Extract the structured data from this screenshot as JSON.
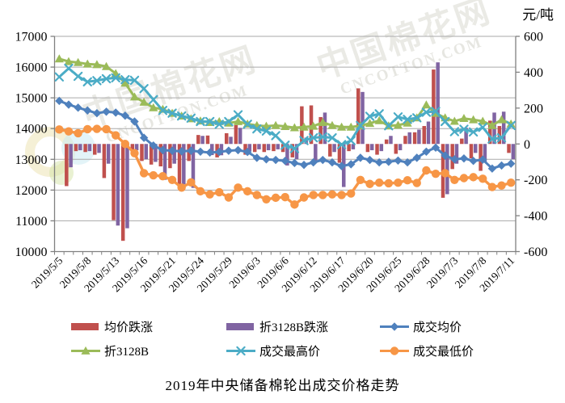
{
  "title": "2019年中央储备棉轮出成交价格走势",
  "unit_label": "元/吨",
  "watermark": {
    "cn_text": "中国棉花网",
    "en_text": "CNCOTTON.COM"
  },
  "chart_data": {
    "type": "combo-bar-line",
    "title": "2019年中央储备棉轮出成交价格走势",
    "unit": "元/吨",
    "grid": true,
    "legend_position": "bottom",
    "left_axis": {
      "min": 10000,
      "max": 17000,
      "step": 1000,
      "ticks": [
        "17000",
        "16000",
        "15000",
        "14000",
        "13000",
        "12000",
        "11000",
        "10000"
      ]
    },
    "right_axis": {
      "min": -600,
      "max": 600,
      "step": 200,
      "ticks": [
        "600",
        "400",
        "200",
        "0",
        "-200",
        "-400",
        "-600"
      ]
    },
    "x_label_every": 3,
    "x_axis_labels": [
      "2019/5/5",
      "2019/5/8",
      "2019/5/13",
      "2019/5/16",
      "2019/5/21",
      "2019/5/24",
      "2019/5/29",
      "2019/6/3",
      "2019/6/6",
      "2019/6/12",
      "2019/6/17",
      "2019/6/20",
      "2019/6/25",
      "2019/6/28",
      "2019/7/3",
      "2019/7/8",
      "2019/7/11"
    ],
    "categories": [
      "2019/5/5",
      "2019/5/6",
      "2019/5/7",
      "2019/5/8",
      "2019/5/9",
      "2019/5/10",
      "2019/5/13",
      "2019/5/14",
      "2019/5/15",
      "2019/5/16",
      "2019/5/17",
      "2019/5/20",
      "2019/5/21",
      "2019/5/22",
      "2019/5/23",
      "2019/5/24",
      "2019/5/27",
      "2019/5/28",
      "2019/5/29",
      "2019/5/30",
      "2019/5/31",
      "2019/6/3",
      "2019/6/4",
      "2019/6/5",
      "2019/6/6",
      "2019/6/10",
      "2019/6/11",
      "2019/6/12",
      "2019/6/13",
      "2019/6/14",
      "2019/6/17",
      "2019/6/18",
      "2019/6/19",
      "2019/6/20",
      "2019/6/21",
      "2019/6/24",
      "2019/6/25",
      "2019/6/26",
      "2019/6/27",
      "2019/6/28",
      "2019/7/1",
      "2019/7/2",
      "2019/7/3",
      "2019/7/4",
      "2019/7/5",
      "2019/7/8",
      "2019/7/9",
      "2019/7/10",
      "2019/7/11"
    ],
    "bar_series": [
      {
        "id": "avg-price-change",
        "name": "均价跌涨",
        "color": "#C0504D",
        "axis": "right",
        "values": [
          null,
          -235,
          -40,
          -45,
          -60,
          -190,
          -425,
          -540,
          -50,
          -95,
          -115,
          -125,
          -135,
          -250,
          -95,
          50,
          47,
          -75,
          60,
          105,
          -60,
          -45,
          -45,
          -40,
          -45,
          -75,
          210,
          215,
          150,
          -70,
          -105,
          -40,
          310,
          -45,
          -60,
          25,
          -55,
          45,
          65,
          100,
          415,
          -300,
          -140,
          30,
          -80,
          -150,
          130,
          100,
          -50
        ]
      },
      {
        "id": "b3128-change",
        "name": "折3128B跌涨",
        "color": "#8064A2",
        "axis": "right",
        "values": [
          null,
          -130,
          -35,
          -40,
          -50,
          -110,
          -455,
          -470,
          -35,
          -85,
          -100,
          -200,
          -110,
          -225,
          -245,
          45,
          -62,
          -63,
          40,
          90,
          -40,
          -30,
          -35,
          -30,
          -120,
          -85,
          35,
          -100,
          175,
          -45,
          -240,
          -30,
          290,
          -35,
          -40,
          45,
          -35,
          65,
          80,
          125,
          455,
          -280,
          -110,
          90,
          -50,
          -100,
          175,
          180,
          -85
        ]
      }
    ],
    "line_series": [
      {
        "id": "deal-avg-price",
        "name": "成交均价",
        "color": "#4F81BD",
        "marker": "diamond",
        "width": 3,
        "axis": "left",
        "values": [
          14900,
          14780,
          14680,
          14590,
          14500,
          14550,
          14520,
          14420,
          14230,
          13700,
          13450,
          13300,
          13280,
          13260,
          13280,
          13250,
          13220,
          13240,
          13280,
          13300,
          13240,
          13050,
          13000,
          12980,
          12950,
          12880,
          12820,
          12900,
          12980,
          12900,
          12780,
          12840,
          13050,
          12980,
          12900,
          12920,
          12960,
          12900,
          13050,
          13250,
          13380,
          13120,
          13000,
          13030,
          12950,
          12990,
          12700,
          12800,
          12860
        ]
      },
      {
        "id": "b3128-price",
        "name": "折3128B",
        "color": "#9BBB59",
        "marker": "triangle",
        "width": 3,
        "axis": "left",
        "values": [
          16270,
          16180,
          16150,
          16100,
          16080,
          16020,
          15790,
          15480,
          15030,
          14860,
          14680,
          14630,
          14500,
          14410,
          14320,
          14250,
          14200,
          14230,
          14180,
          14230,
          14150,
          14100,
          14080,
          14100,
          14070,
          14030,
          14050,
          14080,
          14200,
          14100,
          14050,
          14050,
          14090,
          14170,
          14260,
          14090,
          14110,
          14180,
          14350,
          14770,
          14500,
          14350,
          14240,
          14330,
          14290,
          14240,
          14100,
          14290,
          14150
        ]
      },
      {
        "id": "deal-high-price",
        "name": "成交最高价",
        "color": "#4BACC6",
        "marker": "x",
        "width": 3,
        "axis": "left",
        "values": [
          15680,
          15960,
          15700,
          15520,
          15560,
          15620,
          15650,
          15590,
          15570,
          15300,
          14940,
          14590,
          14500,
          14410,
          14340,
          14230,
          14230,
          14140,
          14230,
          14450,
          14140,
          13990,
          13920,
          13770,
          13460,
          13350,
          13610,
          13700,
          13730,
          13700,
          13480,
          13610,
          14100,
          14400,
          14480,
          14090,
          14380,
          14300,
          14350,
          14530,
          14560,
          14230,
          13900,
          13980,
          13890,
          14040,
          13660,
          13700,
          14100
        ]
      },
      {
        "id": "deal-low-price",
        "name": "成交最低价",
        "color": "#F79646",
        "marker": "circle",
        "width": 3.4,
        "axis": "left",
        "values": [
          13970,
          13910,
          13850,
          13980,
          13990,
          13980,
          13780,
          13500,
          13200,
          12550,
          12480,
          12450,
          12330,
          12080,
          12250,
          11960,
          11860,
          11930,
          11760,
          12080,
          11960,
          11840,
          11700,
          11750,
          11770,
          11530,
          11760,
          11840,
          11840,
          11860,
          11840,
          11890,
          12330,
          12200,
          12240,
          12220,
          12240,
          12320,
          12230,
          12640,
          12530,
          12550,
          12330,
          12390,
          12420,
          12370,
          12100,
          12150,
          12240
        ]
      }
    ],
    "legend": [
      {
        "id": "avg-price-change",
        "label": "均价跌涨",
        "type": "bar",
        "color": "#C0504D"
      },
      {
        "id": "b3128-change",
        "label": "折3128B跌涨",
        "type": "bar",
        "color": "#8064A2"
      },
      {
        "id": "deal-avg-price",
        "label": "成交均价",
        "type": "line",
        "marker": "diamond",
        "color": "#4F81BD"
      },
      {
        "id": "b3128-price",
        "label": "折3128B",
        "type": "line",
        "marker": "triangle",
        "color": "#9BBB59"
      },
      {
        "id": "deal-high-price",
        "label": "成交最高价",
        "type": "line",
        "marker": "x",
        "color": "#4BACC6"
      },
      {
        "id": "deal-low-price",
        "label": "成交最低价",
        "type": "line",
        "marker": "circle",
        "color": "#F79646"
      }
    ],
    "colors": {
      "gridline": "#aaaaaa",
      "axis": "#808080",
      "text": "#000000"
    }
  }
}
